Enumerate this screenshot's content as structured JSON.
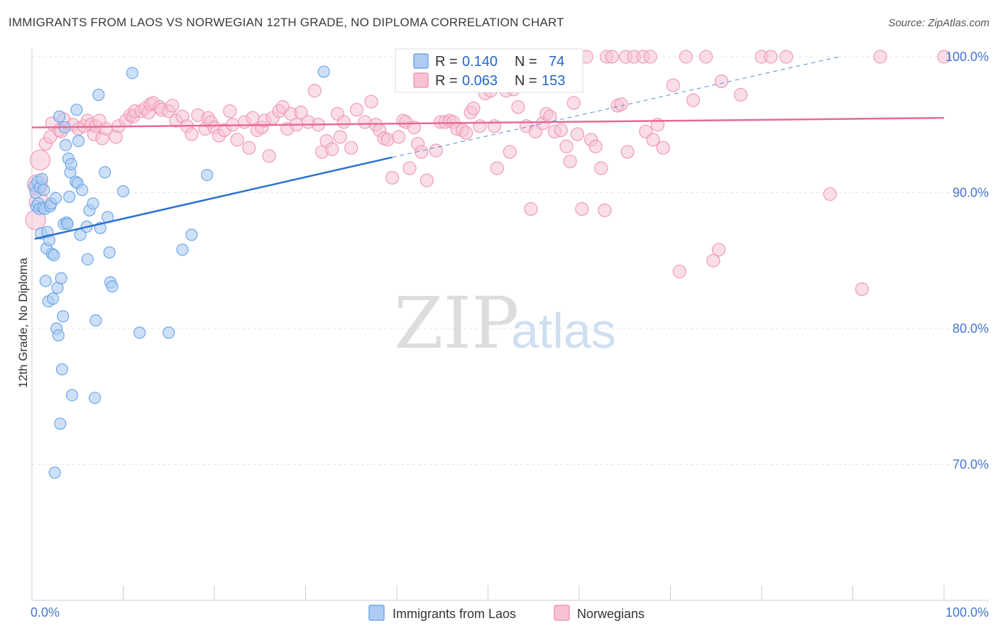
{
  "title": "IMMIGRANTS FROM LAOS VS NORWEGIAN 12TH GRADE, NO DIPLOMA CORRELATION CHART",
  "source": "Source: ZipAtlas.com",
  "watermark": {
    "zip": "ZIP",
    "atlas": "atlas"
  },
  "colors": {
    "blue": "#6fa8e8",
    "blue_fill": "#aeccf2",
    "blue_line": "#2a72d0",
    "pink": "#f09ab8",
    "pink_fill": "#f6c2d4",
    "pink_line": "#e8689a",
    "grid": "#e6e6e6"
  },
  "chart_data": {
    "type": "scatter",
    "title": "IMMIGRANTS FROM LAOS VS NORWEGIAN 12TH GRADE, NO DIPLOMA CORRELATION CHART",
    "xlabel": "",
    "ylabel": "12th Grade, No Diploma",
    "xlim": [
      0,
      100
    ],
    "ylim": [
      60,
      104
    ],
    "x_ticks": [
      "0.0%",
      "100.0%"
    ],
    "y_ticks": [
      {
        "value": 70,
        "label": "70.0%"
      },
      {
        "value": 80,
        "label": "80.0%"
      },
      {
        "value": 90,
        "label": "90.0%"
      },
      {
        "value": 100,
        "label": "100.0%"
      }
    ],
    "legend": [
      {
        "name": "Immigrants from Laos",
        "r_label": "R =",
        "r": "0.140",
        "n_label": "N =",
        "n": "74"
      },
      {
        "name": "Norwegians",
        "r_label": "R =",
        "r": "0.063",
        "n_label": "N =",
        "n": "153"
      }
    ],
    "series": [
      {
        "name": "Immigrants from Laos",
        "color": "#6fa8e8",
        "trend": {
          "x0": 0.3,
          "y0": 86.6,
          "x1": 39.5,
          "y1": 92.6,
          "dash_x1": 88.5,
          "dash_y1": 100.0
        },
        "points": [
          [
            0.3,
            90.5
          ],
          [
            0.4,
            90.0
          ],
          [
            0.5,
            89.0
          ],
          [
            0.6,
            90.8
          ],
          [
            0.7,
            89.2
          ],
          [
            0.8,
            88.8
          ],
          [
            0.9,
            90.4
          ],
          [
            1.0,
            87.0
          ],
          [
            1.1,
            91.0
          ],
          [
            1.2,
            88.9
          ],
          [
            1.3,
            90.2
          ],
          [
            1.4,
            88.8
          ],
          [
            1.5,
            83.5
          ],
          [
            1.6,
            85.9
          ],
          [
            1.7,
            87.1
          ],
          [
            1.8,
            82.0
          ],
          [
            1.9,
            86.5
          ],
          [
            2.0,
            89.0
          ],
          [
            2.1,
            89.2
          ],
          [
            2.2,
            85.5
          ],
          [
            2.3,
            82.2
          ],
          [
            2.4,
            85.4
          ],
          [
            2.5,
            69.4
          ],
          [
            2.6,
            89.6
          ],
          [
            2.7,
            80.0
          ],
          [
            2.8,
            83.0
          ],
          [
            2.9,
            79.5
          ],
          [
            3.0,
            95.6
          ],
          [
            3.1,
            73.0
          ],
          [
            3.2,
            83.7
          ],
          [
            3.3,
            77.0
          ],
          [
            3.4,
            80.9
          ],
          [
            3.5,
            87.7
          ],
          [
            3.6,
            94.8
          ],
          [
            3.7,
            93.5
          ],
          [
            3.8,
            87.8
          ],
          [
            3.9,
            87.7
          ],
          [
            4.0,
            92.5
          ],
          [
            4.1,
            89.7
          ],
          [
            4.2,
            91.5
          ],
          [
            4.3,
            92.1
          ],
          [
            4.4,
            75.1
          ],
          [
            4.8,
            90.8
          ],
          [
            4.9,
            96.1
          ],
          [
            5.0,
            90.7
          ],
          [
            5.1,
            93.8
          ],
          [
            5.3,
            86.9
          ],
          [
            5.5,
            90.2
          ],
          [
            6.0,
            87.5
          ],
          [
            6.1,
            85.1
          ],
          [
            6.3,
            88.7
          ],
          [
            6.7,
            89.2
          ],
          [
            6.9,
            74.9
          ],
          [
            7.0,
            80.6
          ],
          [
            7.3,
            97.2
          ],
          [
            7.5,
            87.4
          ],
          [
            8.0,
            91.5
          ],
          [
            8.3,
            88.2
          ],
          [
            8.5,
            85.6
          ],
          [
            8.6,
            83.4
          ],
          [
            8.8,
            83.1
          ],
          [
            10.0,
            90.1
          ],
          [
            11.0,
            98.8
          ],
          [
            11.8,
            79.7
          ],
          [
            15.0,
            79.7
          ],
          [
            16.5,
            85.8
          ],
          [
            17.5,
            86.9
          ],
          [
            19.2,
            91.3
          ],
          [
            32.0,
            98.9
          ]
        ]
      },
      {
        "name": "Norwegians",
        "color": "#f09ab8",
        "trend": {
          "x0": 0,
          "y0": 94.8,
          "x1": 100,
          "y1": 95.5
        },
        "points": [
          [
            0.4,
            88.0
          ],
          [
            0.6,
            90.6
          ],
          [
            0.8,
            89.3
          ],
          [
            0.9,
            92.4
          ],
          [
            1.5,
            93.6
          ],
          [
            2.0,
            94.1
          ],
          [
            2.2,
            95.1
          ],
          [
            3.0,
            94.6
          ],
          [
            3.2,
            94.5
          ],
          [
            3.5,
            95.4
          ],
          [
            4.5,
            95.0
          ],
          [
            5.1,
            94.7
          ],
          [
            5.7,
            94.9
          ],
          [
            6.1,
            95.3
          ],
          [
            6.5,
            95.0
          ],
          [
            6.8,
            94.3
          ],
          [
            7.0,
            94.9
          ],
          [
            7.4,
            95.3
          ],
          [
            7.7,
            94.0
          ],
          [
            8.1,
            94.7
          ],
          [
            9.2,
            94.1
          ],
          [
            9.5,
            94.9
          ],
          [
            10.3,
            95.3
          ],
          [
            10.8,
            95.7
          ],
          [
            11.1,
            95.6
          ],
          [
            11.3,
            96.0
          ],
          [
            12.0,
            96.0
          ],
          [
            12.4,
            96.2
          ],
          [
            12.8,
            95.9
          ],
          [
            13.0,
            96.5
          ],
          [
            13.3,
            96.6
          ],
          [
            14.0,
            96.3
          ],
          [
            14.2,
            96.1
          ],
          [
            15.0,
            96.0
          ],
          [
            15.4,
            96.4
          ],
          [
            15.8,
            95.3
          ],
          [
            16.5,
            95.6
          ],
          [
            17.0,
            94.9
          ],
          [
            17.5,
            94.3
          ],
          [
            18.2,
            95.7
          ],
          [
            19.0,
            94.7
          ],
          [
            19.3,
            95.5
          ],
          [
            19.6,
            95.2
          ],
          [
            20.0,
            94.8
          ],
          [
            20.5,
            94.2
          ],
          [
            21.1,
            94.6
          ],
          [
            21.7,
            96.0
          ],
          [
            22.0,
            95.0
          ],
          [
            22.5,
            93.9
          ],
          [
            23.3,
            95.2
          ],
          [
            23.8,
            93.3
          ],
          [
            24.2,
            95.5
          ],
          [
            24.7,
            94.6
          ],
          [
            25.2,
            94.8
          ],
          [
            25.5,
            95.3
          ],
          [
            26.0,
            92.7
          ],
          [
            26.4,
            95.5
          ],
          [
            27.1,
            96.0
          ],
          [
            27.5,
            96.3
          ],
          [
            28.0,
            94.7
          ],
          [
            28.4,
            95.8
          ],
          [
            29.0,
            95.0
          ],
          [
            29.5,
            95.9
          ],
          [
            30.3,
            95.2
          ],
          [
            31.0,
            97.5
          ],
          [
            31.4,
            95.0
          ],
          [
            31.8,
            93.0
          ],
          [
            32.3,
            93.8
          ],
          [
            32.9,
            93.2
          ],
          [
            33.5,
            95.8
          ],
          [
            33.8,
            94.1
          ],
          [
            34.2,
            95.2
          ],
          [
            35.0,
            93.3
          ],
          [
            35.6,
            96.1
          ],
          [
            36.5,
            95.2
          ],
          [
            37.2,
            96.7
          ],
          [
            37.7,
            95.0
          ],
          [
            38.1,
            94.6
          ],
          [
            38.6,
            94.0
          ],
          [
            39.0,
            93.9
          ],
          [
            39.5,
            91.1
          ],
          [
            40.2,
            94.1
          ],
          [
            40.7,
            95.3
          ],
          [
            41.0,
            95.2
          ],
          [
            41.4,
            91.8
          ],
          [
            41.9,
            94.8
          ],
          [
            42.3,
            93.6
          ],
          [
            42.7,
            93.0
          ],
          [
            43.3,
            90.9
          ],
          [
            44.3,
            93.1
          ],
          [
            44.8,
            95.2
          ],
          [
            45.3,
            95.2
          ],
          [
            45.8,
            95.3
          ],
          [
            46.2,
            95.2
          ],
          [
            46.6,
            94.7
          ],
          [
            47.2,
            94.6
          ],
          [
            47.6,
            94.4
          ],
          [
            48.1,
            95.9
          ],
          [
            48.4,
            96.2
          ],
          [
            49.1,
            94.9
          ],
          [
            49.7,
            97.3
          ],
          [
            50.3,
            97.5
          ],
          [
            50.7,
            94.9
          ],
          [
            51.0,
            91.8
          ],
          [
            51.5,
            98.3
          ],
          [
            52.0,
            97.5
          ],
          [
            52.4,
            93.0
          ],
          [
            52.8,
            97.6
          ],
          [
            53.3,
            96.3
          ],
          [
            54.2,
            94.9
          ],
          [
            54.7,
            88.8
          ],
          [
            55.2,
            94.5
          ],
          [
            56.0,
            95.1
          ],
          [
            56.4,
            95.8
          ],
          [
            56.8,
            95.6
          ],
          [
            57.3,
            94.5
          ],
          [
            58.0,
            94.6
          ],
          [
            58.6,
            93.4
          ],
          [
            59.0,
            92.3
          ],
          [
            59.4,
            96.6
          ],
          [
            59.8,
            94.3
          ],
          [
            60.3,
            88.8
          ],
          [
            60.8,
            100.0
          ],
          [
            61.3,
            93.9
          ],
          [
            61.8,
            93.4
          ],
          [
            62.4,
            91.8
          ],
          [
            62.8,
            88.7
          ],
          [
            63.0,
            100.0
          ],
          [
            63.6,
            100.0
          ],
          [
            64.2,
            96.4
          ],
          [
            64.6,
            96.5
          ],
          [
            65.1,
            100.0
          ],
          [
            65.3,
            93.0
          ],
          [
            66.0,
            100.0
          ],
          [
            67.0,
            100.0
          ],
          [
            67.3,
            94.5
          ],
          [
            67.8,
            100.0
          ],
          [
            68.1,
            93.9
          ],
          [
            68.6,
            95.0
          ],
          [
            69.2,
            93.3
          ],
          [
            70.3,
            97.9
          ],
          [
            71.0,
            84.2
          ],
          [
            71.7,
            100.0
          ],
          [
            72.5,
            96.8
          ],
          [
            73.9,
            100.0
          ],
          [
            74.7,
            85.0
          ],
          [
            75.3,
            85.8
          ],
          [
            75.6,
            98.2
          ],
          [
            77.7,
            97.2
          ],
          [
            80.0,
            100.0
          ],
          [
            81.0,
            100.0
          ],
          [
            82.7,
            100.0
          ],
          [
            87.5,
            89.9
          ],
          [
            91.0,
            82.9
          ],
          [
            93.0,
            100.0
          ],
          [
            100.0,
            100.0
          ]
        ]
      }
    ]
  }
}
